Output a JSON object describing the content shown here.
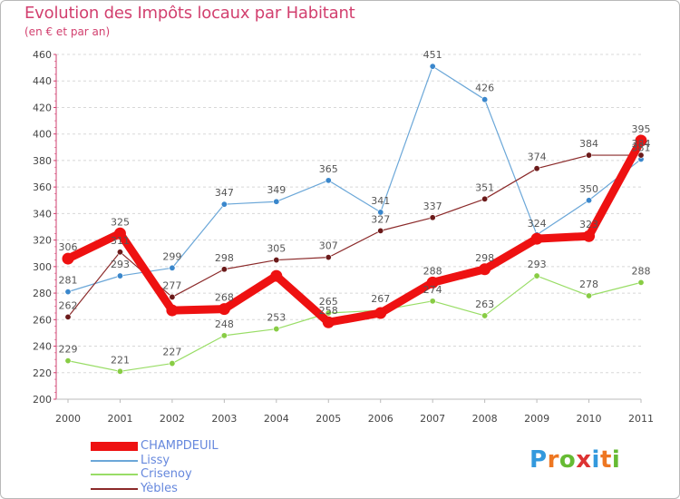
{
  "header": {
    "title": "Evolution des Impôts locaux par Habitant",
    "subtitle": "(en € et par an)"
  },
  "logo": {
    "text": "Proxiti",
    "letters": [
      "P",
      "r",
      "o",
      "x",
      "i",
      "t",
      "i"
    ],
    "colors": [
      "#3399dd",
      "#ee7722",
      "#66bb33",
      "#dd3333",
      "#3399dd",
      "#ee7722",
      "#66bb33"
    ]
  },
  "chart_data": {
    "type": "line",
    "x": [
      "2000",
      "2001",
      "2002",
      "2003",
      "2004",
      "2005",
      "2006",
      "2007",
      "2008",
      "2009",
      "2010",
      "2011"
    ],
    "ylim": [
      200,
      460
    ],
    "yticks": [
      200,
      220,
      240,
      260,
      280,
      300,
      320,
      340,
      360,
      380,
      400,
      420,
      440,
      460
    ],
    "grid": "horizontal dashed",
    "legend_position": "bottom-left",
    "series": [
      {
        "name": "CHAMPDEUIL",
        "color": "#ee1111",
        "width": 9,
        "marker_fill": "#ee1111",
        "values": [
          306,
          325,
          267,
          268,
          293,
          258,
          265,
          288,
          298,
          321,
          323,
          395
        ],
        "labels": [
          "306",
          "325",
          "",
          "268",
          "",
          "258",
          "",
          "288",
          "298",
          "",
          "323",
          "395"
        ]
      },
      {
        "name": "Lissy",
        "color": "#6ba7d8",
        "width": 1.2,
        "marker_fill": "#3a87cc",
        "values": [
          281,
          293,
          299,
          347,
          349,
          365,
          341,
          451,
          426,
          324,
          350,
          381
        ],
        "labels": [
          "281",
          "293",
          "299",
          "347",
          "349",
          "365",
          "341",
          "451",
          "426",
          "324",
          "350",
          "381"
        ]
      },
      {
        "name": "Crisenoy",
        "color": "#99dd66",
        "width": 1.2,
        "marker_fill": "#88cc44",
        "values": [
          229,
          221,
          227,
          248,
          253,
          265,
          267,
          274,
          263,
          293,
          278,
          288
        ],
        "labels": [
          "229",
          "221",
          "227",
          "248",
          "253",
          "265",
          "267",
          "274",
          "263",
          "293",
          "278",
          "288"
        ]
      },
      {
        "name": "Yèbles",
        "color": "#8b2a2a",
        "width": 1.2,
        "marker_fill": "#6b1a1a",
        "values": [
          262,
          311,
          277,
          298,
          305,
          307,
          327,
          337,
          351,
          374,
          384,
          384
        ],
        "labels": [
          "262",
          "311",
          "277",
          "298",
          "305",
          "307",
          "327",
          "337",
          "351",
          "374",
          "384",
          "384"
        ]
      }
    ]
  }
}
